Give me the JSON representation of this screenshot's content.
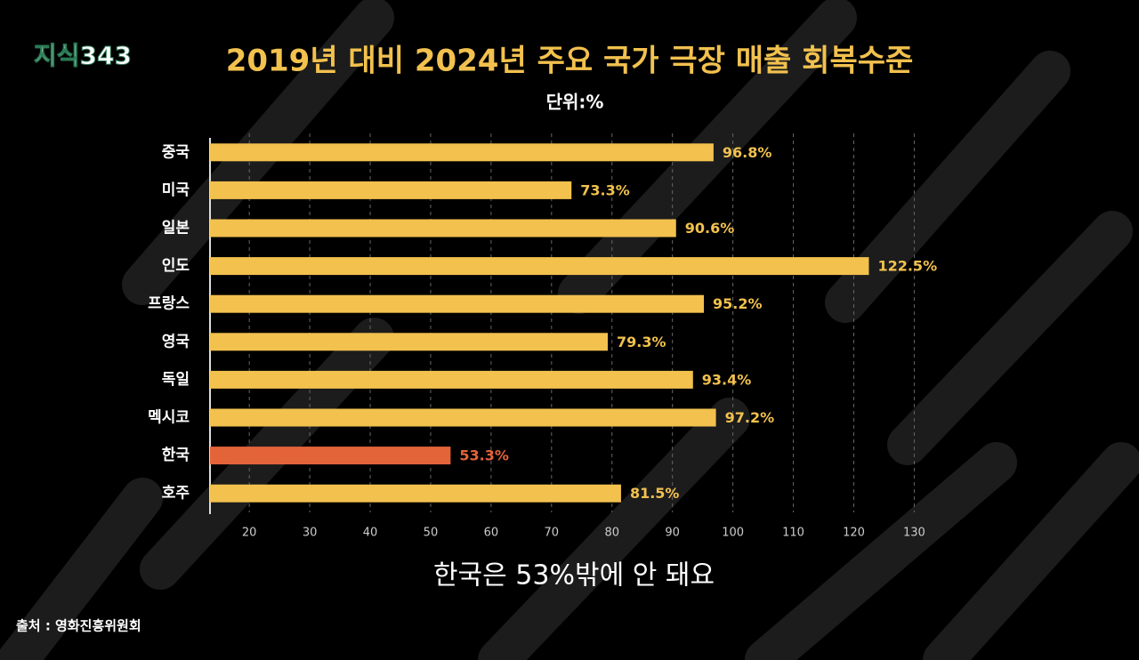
{
  "logo": "지식343",
  "caption": "한국은 53%밖에 안 돼요",
  "source": "출처 : 영화진흥위원회",
  "chart_data": {
    "type": "hbar",
    "title": "2019년 대비 2024년 주요 국가 극장 매출 회복수준",
    "subtitle": "단위:%",
    "categories": [
      "중국",
      "미국",
      "일본",
      "인도",
      "프랑스",
      "영국",
      "독일",
      "멕시코",
      "한국",
      "호주"
    ],
    "values": [
      96.8,
      73.3,
      90.6,
      122.5,
      95.2,
      79.3,
      93.4,
      97.2,
      53.3,
      81.5
    ],
    "value_labels": [
      "96.8%",
      "73.3%",
      "90.6%",
      "122.5%",
      "95.2%",
      "79.3%",
      "93.4%",
      "97.2%",
      "53.3%",
      "81.5%"
    ],
    "colors": [
      "#f2c14e",
      "#f2c14e",
      "#f2c14e",
      "#f2c14e",
      "#f2c14e",
      "#f2c14e",
      "#f2c14e",
      "#f2c14e",
      "#e4643a",
      "#f2c14e"
    ],
    "xlim": [
      13.5,
      132
    ],
    "xticks": [
      20,
      30,
      40,
      50,
      60,
      70,
      80,
      90,
      100,
      110,
      120,
      130
    ],
    "grid": true
  }
}
